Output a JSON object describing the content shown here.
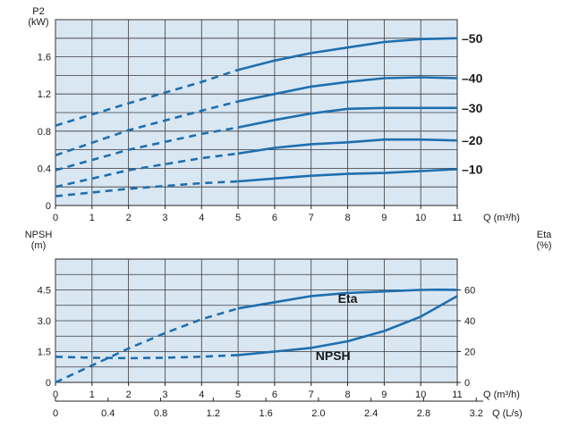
{
  "chart_data": [
    {
      "type": "line",
      "panel": "power",
      "ylabel_line1": "P2",
      "ylabel_line2": "(kW)",
      "xlabel": "Q (m³/h)",
      "xlim": [
        0,
        11
      ],
      "ylim": [
        0,
        2.0
      ],
      "xticks": [
        0,
        1,
        2,
        3,
        4,
        5,
        6,
        7,
        8,
        9,
        10,
        11
      ],
      "xtick_labels": [
        "0",
        "1",
        "2",
        "3",
        "4",
        "5",
        "6",
        "7",
        "8",
        "9",
        "10",
        "11"
      ],
      "yticks": [
        0,
        0.4,
        0.8,
        1.2,
        1.6
      ],
      "ytick_labels": [
        "0",
        "0.4",
        "0.8",
        "1.2",
        "1.6"
      ],
      "grid": true,
      "background": "#d9e7f3",
      "line_color": "#1f6fae",
      "series": [
        {
          "name": "–10",
          "dashed": {
            "x": [
              0,
              2,
              4,
              5
            ],
            "y": [
              0.1,
              0.18,
              0.24,
              0.26
            ]
          },
          "solid": {
            "x": [
              5,
              6,
              7,
              8,
              9,
              10,
              11
            ],
            "y": [
              0.26,
              0.29,
              0.32,
              0.34,
              0.35,
              0.37,
              0.39
            ]
          }
        },
        {
          "name": "–20",
          "dashed": {
            "x": [
              0,
              2,
              4,
              5
            ],
            "y": [
              0.2,
              0.38,
              0.51,
              0.56
            ]
          },
          "solid": {
            "x": [
              5,
              6,
              7,
              8,
              9,
              10,
              11
            ],
            "y": [
              0.56,
              0.62,
              0.66,
              0.68,
              0.71,
              0.71,
              0.7
            ]
          }
        },
        {
          "name": "–30",
          "dashed": {
            "x": [
              0,
              2,
              4,
              5
            ],
            "y": [
              0.38,
              0.6,
              0.77,
              0.84
            ]
          },
          "solid": {
            "x": [
              5,
              6,
              7,
              8,
              9,
              10,
              11
            ],
            "y": [
              0.84,
              0.92,
              0.99,
              1.04,
              1.05,
              1.05,
              1.05
            ]
          }
        },
        {
          "name": "–40",
          "dashed": {
            "x": [
              0,
              2,
              4,
              5
            ],
            "y": [
              0.54,
              0.81,
              1.02,
              1.12
            ]
          },
          "solid": {
            "x": [
              5,
              6,
              7,
              8,
              9,
              10,
              11
            ],
            "y": [
              1.12,
              1.2,
              1.28,
              1.33,
              1.37,
              1.38,
              1.37
            ]
          }
        },
        {
          "name": "–50",
          "dashed": {
            "x": [
              0,
              2,
              4,
              5
            ],
            "y": [
              0.86,
              1.1,
              1.33,
              1.46
            ]
          },
          "solid": {
            "x": [
              5,
              6,
              7,
              8,
              9,
              10,
              11
            ],
            "y": [
              1.46,
              1.56,
              1.64,
              1.7,
              1.76,
              1.79,
              1.8
            ]
          }
        }
      ]
    },
    {
      "type": "line",
      "panel": "npsh_eta",
      "ylabel_line1": "NPSH",
      "ylabel_line2": "(m)",
      "y2label_line1": "Eta",
      "y2label_line2": "(%)",
      "xlabel": "Q (m³/h)",
      "x2label": "Q (L/s)",
      "xlim": [
        0,
        11
      ],
      "ylim": [
        0,
        6
      ],
      "y2lim": [
        0,
        80
      ],
      "xticks": [
        0,
        1,
        2,
        3,
        4,
        5,
        6,
        7,
        8,
        9,
        10,
        11
      ],
      "xtick_labels": [
        "0",
        "1",
        "2",
        "3",
        "4",
        "5",
        "6",
        "7",
        "8",
        "9",
        "10",
        "11"
      ],
      "yticks": [
        0,
        1.5,
        3.0,
        4.5
      ],
      "ytick_labels": [
        "0",
        "1.5",
        "3.0",
        "4.5"
      ],
      "y2ticks": [
        0,
        20,
        40,
        60
      ],
      "y2tick_labels": [
        "0",
        "20",
        "40",
        "60"
      ],
      "x2ticks": [
        0,
        0.4,
        0.8,
        1.2,
        1.6,
        2.0,
        2.4,
        2.8,
        3.2
      ],
      "x2tick_labels": [
        "0",
        "0.4",
        "0.8",
        "1.2",
        "1.6",
        "2.0",
        "2.4",
        "2.8",
        "3.2"
      ],
      "grid": true,
      "background": "#d9e7f3",
      "line_color": "#1f6fae",
      "series": [
        {
          "name": "Eta",
          "axis": "right",
          "dashed": {
            "x": [
              0,
              1,
              2,
              3,
              4,
              5
            ],
            "y": [
              0,
              11,
              22,
              32,
              41,
              48
            ]
          },
          "solid": {
            "x": [
              5,
              6,
              7,
              8,
              9,
              10,
              10.5,
              11
            ],
            "y": [
              48,
              52,
              56,
              58,
              59,
              60,
              60.2,
              60
            ]
          }
        },
        {
          "name": "NPSH",
          "axis": "left",
          "dashed": {
            "x": [
              0,
              1,
              2,
              3,
              4,
              5
            ],
            "y": [
              1.25,
              1.2,
              1.18,
              1.2,
              1.25,
              1.33
            ]
          },
          "solid": {
            "x": [
              5,
              6,
              7,
              8,
              9,
              10,
              10.5,
              11
            ],
            "y": [
              1.33,
              1.5,
              1.68,
              2.0,
              2.5,
              3.2,
              3.7,
              4.2
            ]
          }
        }
      ]
    }
  ]
}
